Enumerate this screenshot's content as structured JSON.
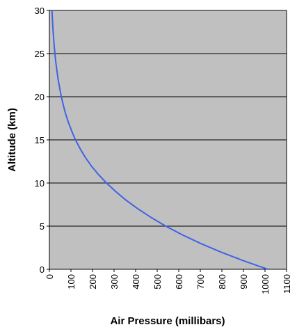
{
  "chart_data": {
    "type": "line",
    "x_label": "Air Pressure (millibars)",
    "y_label": "Altitude (km)",
    "series": [
      {
        "name": "Air pressure",
        "color": "#3f63e6",
        "x": [
          1013,
          899,
          795,
          701,
          616,
          540,
          472,
          411,
          356,
          308,
          265,
          227,
          194,
          166,
          142,
          121,
          104,
          88.5,
          75.6,
          64.7,
          55.3,
          40.5,
          29.7,
          21.9,
          16.2,
          12
        ],
        "values": [
          0,
          1,
          2,
          3,
          4,
          5,
          6,
          7,
          8,
          9,
          10,
          11,
          12,
          13,
          14,
          15,
          16,
          17,
          18,
          19,
          20,
          22,
          24,
          26,
          28,
          30
        ]
      }
    ],
    "xlim": [
      0,
      1100
    ],
    "xticks": [
      0,
      100,
      200,
      300,
      400,
      500,
      600,
      700,
      800,
      900,
      1000,
      1100
    ],
    "ylim": [
      0,
      30
    ],
    "yticks": [
      0,
      5,
      10,
      15,
      20,
      25,
      30
    ],
    "grid": "horizontal",
    "plot_background": "#c0c0c0"
  }
}
